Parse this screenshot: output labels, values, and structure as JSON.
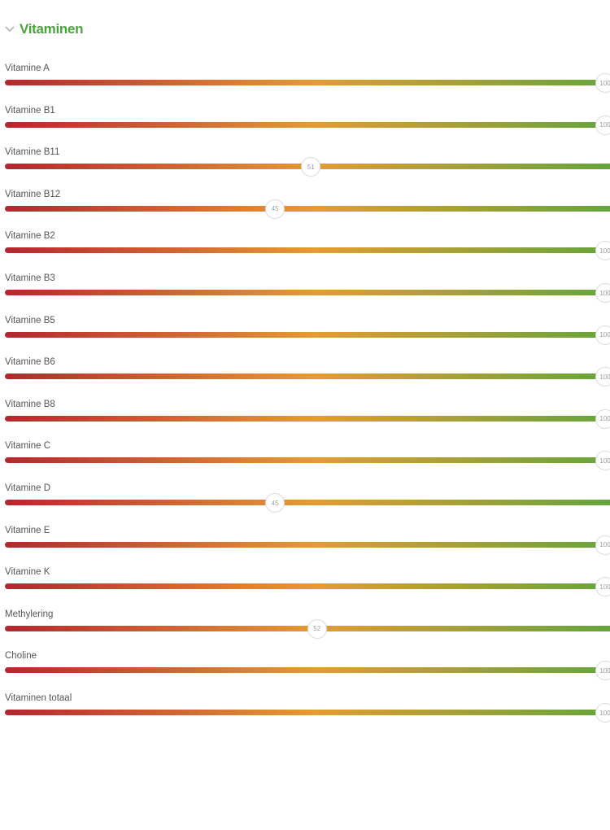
{
  "section": {
    "title": "Vitaminen",
    "collapse_icon": "chevron-down-icon"
  },
  "colors": {
    "title": "#4aa33c",
    "chevron": "#bdbdbd",
    "gradient_low": "#b5262e",
    "gradient_mid": "#e59a35",
    "gradient_high": "#5ea63c"
  },
  "scale_max": 100,
  "items": [
    {
      "label": "Vitamine A",
      "value": "100"
    },
    {
      "label": "Vitamine B1",
      "value": "100"
    },
    {
      "label": "Vitamine B11",
      "value": "51"
    },
    {
      "label": "Vitamine B12",
      "value": "45"
    },
    {
      "label": "Vitamine B2",
      "value": "100"
    },
    {
      "label": "Vitamine B3",
      "value": "100"
    },
    {
      "label": "Vitamine B5",
      "value": "100"
    },
    {
      "label": "Vitamine B6",
      "value": "100"
    },
    {
      "label": "Vitamine B8",
      "value": "100"
    },
    {
      "label": "Vitamine C",
      "value": "100"
    },
    {
      "label": "Vitamine D",
      "value": "45"
    },
    {
      "label": "Vitamine E",
      "value": "100"
    },
    {
      "label": "Vitamine K",
      "value": "100"
    },
    {
      "label": "Methylering",
      "value": "52"
    },
    {
      "label": "Choline",
      "value": "100"
    },
    {
      "label": "Vitaminen totaal",
      "value": "100"
    }
  ]
}
